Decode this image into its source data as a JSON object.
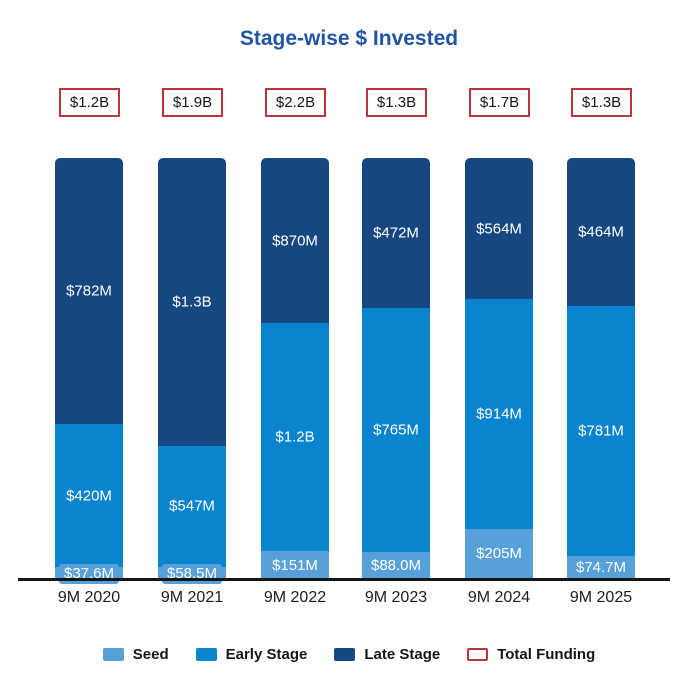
{
  "title": "Stage-wise $ Invested",
  "colors": {
    "seed": "#57a0da",
    "early": "#0984cf",
    "late": "#164780",
    "total_border": "#bf3238",
    "title": "#2155a3",
    "axis": "#161616"
  },
  "legend": [
    {
      "key": "seed",
      "label": "Seed"
    },
    {
      "key": "early",
      "label": "Early Stage"
    },
    {
      "key": "late",
      "label": "Late Stage"
    },
    {
      "key": "total",
      "label": "Total Funding"
    }
  ],
  "chart_data": {
    "type": "bar",
    "stack_mode": "percent",
    "title": "Stage-wise $ Invested",
    "categories": [
      "9M 2020",
      "9M 2021",
      "9M 2022",
      "9M 2023",
      "9M 2024",
      "9M 2025"
    ],
    "totals": [
      "$1.2B",
      "$1.9B",
      "$2.2B",
      "$1.3B",
      "$1.7B",
      "$1.3B"
    ],
    "series": [
      {
        "name": "Seed",
        "values_musd": [
          37.6,
          58.5,
          151,
          88.0,
          205,
          74.7
        ],
        "values_label": [
          "$37.6M",
          "$58.5M",
          "$151M",
          "$88.0M",
          "$205M",
          "$74.7M"
        ]
      },
      {
        "name": "Early Stage",
        "values_musd": [
          420,
          547,
          1200,
          765,
          914,
          781
        ],
        "values_label": [
          "$420M",
          "$547M",
          "$1.2B",
          "$765M",
          "$914M",
          "$781M"
        ]
      },
      {
        "name": "Late Stage",
        "values_musd": [
          782,
          1300,
          870,
          472,
          564,
          464
        ],
        "values_label": [
          "$782M",
          "$1.3B",
          "$870M",
          "$472M",
          "$564M",
          "$464M"
        ]
      }
    ],
    "grid": false,
    "legend_position": "bottom",
    "value_labels": "inside-white"
  }
}
